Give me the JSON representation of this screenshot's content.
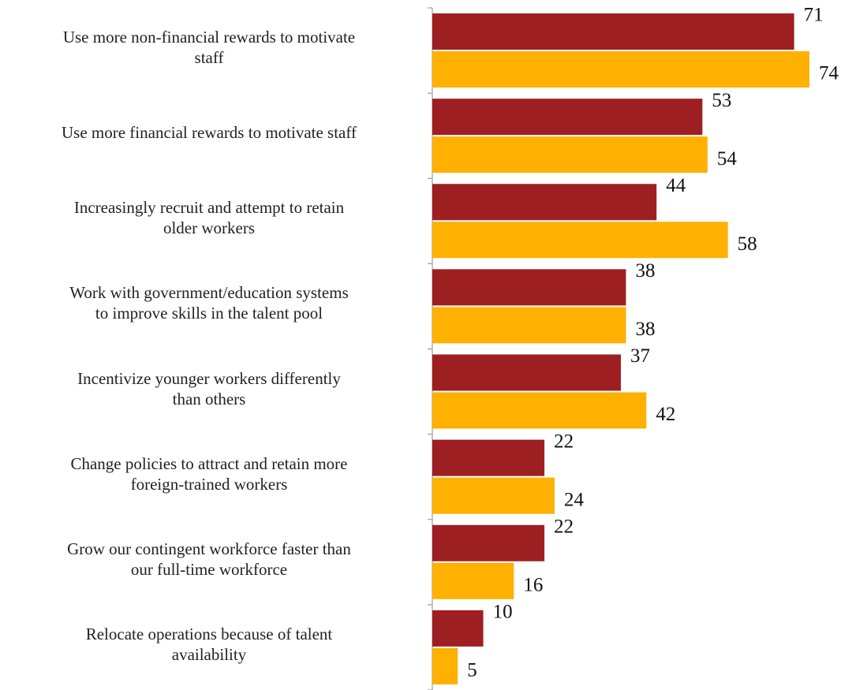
{
  "chart_data": {
    "type": "bar",
    "orientation": "horizontal",
    "categories": [
      "Use more non-financial rewards to motivate\nstaff",
      "Use more financial rewards to motivate staff",
      "Increasingly recruit and attempt to retain\nolder workers",
      "Work with government/education systems\nto improve skills in the talent pool",
      "Incentivize younger workers differently\nthan others",
      "Change policies to attract and retain more\nforeign-trained workers",
      "Grow our contingent workforce faster than\nour full-time workforce",
      "Relocate operations because of talent\navailability"
    ],
    "series": [
      {
        "color": "#9e1f22",
        "values": [
          71,
          53,
          44,
          38,
          37,
          22,
          22,
          10
        ]
      },
      {
        "color": "#ffb000",
        "values": [
          74,
          54,
          58,
          38,
          42,
          24,
          16,
          5
        ]
      }
    ]
  }
}
